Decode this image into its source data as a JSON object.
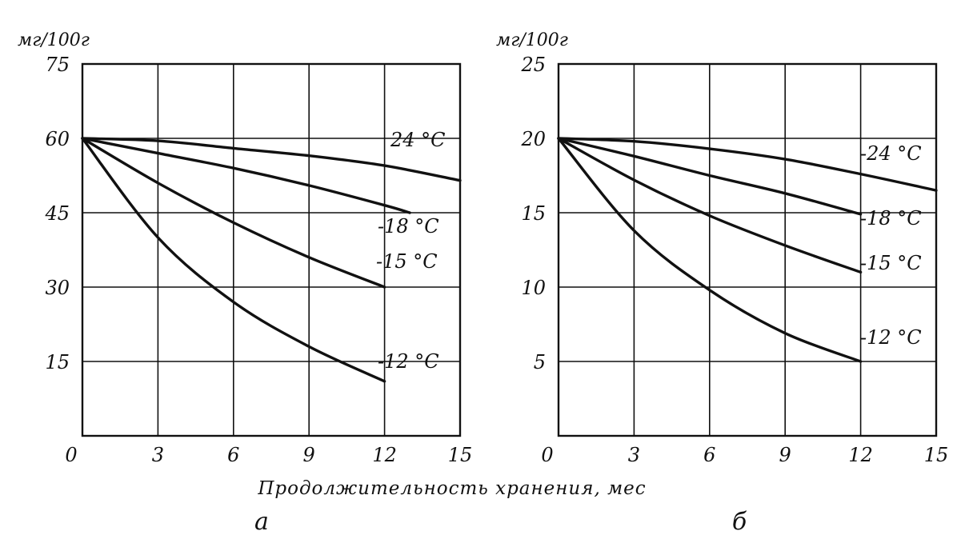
{
  "figure": {
    "xlabel": "Продолжительность  хранения, мес"
  },
  "chart_data": [
    {
      "type": "line",
      "panel_label": "а",
      "ylabel": "мг/100г",
      "xlim": [
        0,
        15
      ],
      "ylim": [
        0,
        75
      ],
      "x_ticks": [
        "0",
        "3",
        "6",
        "9",
        "12",
        "15"
      ],
      "y_ticks": [
        "15",
        "30",
        "45",
        "60",
        "75"
      ],
      "grid": true,
      "series": [
        {
          "name": "24 °С",
          "x": [
            0,
            3,
            6,
            9,
            12,
            15
          ],
          "y": [
            60,
            59.5,
            58,
            56.5,
            54.5,
            51.5
          ]
        },
        {
          "name": "-18 °С",
          "x": [
            0,
            3,
            6,
            9,
            12,
            13
          ],
          "y": [
            60,
            57,
            54,
            50.5,
            46.5,
            45
          ]
        },
        {
          "name": "-15 °С",
          "x": [
            0,
            3,
            6,
            9,
            12
          ],
          "y": [
            60,
            51,
            43,
            36,
            30
          ]
        },
        {
          "name": "-12 °С",
          "x": [
            0,
            3,
            6,
            9,
            12
          ],
          "y": [
            60,
            40,
            27,
            18,
            11
          ]
        }
      ]
    },
    {
      "type": "line",
      "panel_label": "б",
      "ylabel": "мг/100г",
      "xlim": [
        0,
        15
      ],
      "ylim": [
        0,
        25
      ],
      "x_ticks": [
        "0",
        "3",
        "6",
        "9",
        "12",
        "15"
      ],
      "y_ticks": [
        "5",
        "10",
        "15",
        "20",
        "25"
      ],
      "grid": true,
      "series": [
        {
          "name": "-24 °С",
          "x": [
            0,
            3,
            6,
            9,
            12,
            15
          ],
          "y": [
            20,
            19.8,
            19.3,
            18.6,
            17.6,
            16.5
          ]
        },
        {
          "name": "-18 °С",
          "x": [
            0,
            3,
            6,
            9,
            12
          ],
          "y": [
            20,
            18.8,
            17.5,
            16.3,
            14.9
          ]
        },
        {
          "name": "-15 °С",
          "x": [
            0,
            3,
            6,
            9,
            12
          ],
          "y": [
            20,
            17.2,
            14.8,
            12.8,
            11
          ]
        },
        {
          "name": "-12 °С",
          "x": [
            0,
            3,
            6,
            9,
            12
          ],
          "y": [
            20,
            13.8,
            9.8,
            6.9,
            5
          ]
        }
      ]
    }
  ]
}
